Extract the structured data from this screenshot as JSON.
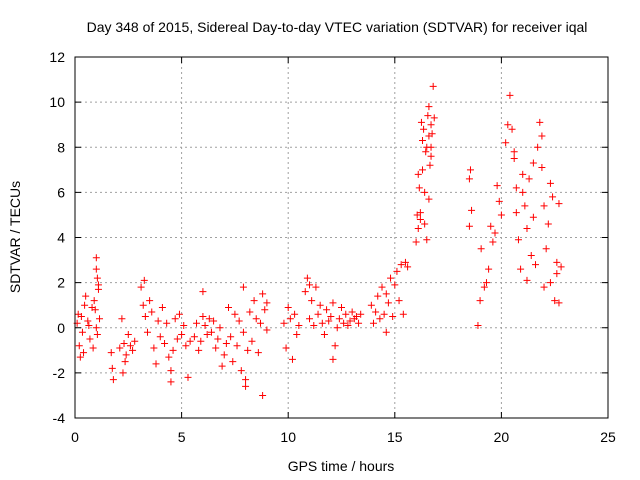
{
  "chart_data": {
    "type": "scatter",
    "title": "Day 348 of 2015, Sidereal Day-to-day VTEC variation (SDTVAR) for receiver iqal",
    "xlabel": "GPS time / hours",
    "ylabel": "SDTVAR / TECUs",
    "xlim": [
      0,
      25
    ],
    "ylim": [
      -4,
      12
    ],
    "xticks": [
      0,
      5,
      10,
      15,
      20,
      25
    ],
    "yticks": [
      -4,
      -2,
      0,
      2,
      4,
      6,
      8,
      10,
      12
    ],
    "grid": true,
    "marker": "+",
    "series": [
      {
        "name": "SDTVAR",
        "color": "#ff0000",
        "x": [
          0.1,
          0.2,
          0.3,
          0.4,
          0.5,
          0.6,
          0.7,
          0.8,
          0.9,
          1.0,
          1.1,
          1.15,
          1.05,
          0.95,
          0.85,
          0.65,
          0.45,
          0.35,
          0.25,
          0.15,
          1.0,
          1.05,
          1.1,
          1.0,
          1.7,
          1.8,
          1.75,
          2.1,
          2.2,
          2.3,
          2.4,
          2.5,
          2.6,
          2.7,
          2.8,
          2.25,
          2.35,
          3.1,
          3.2,
          3.3,
          3.4,
          3.5,
          3.6,
          3.7,
          3.8,
          3.9,
          4.0,
          4.1,
          4.2,
          4.3,
          4.4,
          4.5,
          4.6,
          4.7,
          4.8,
          4.9,
          5.0,
          5.1,
          5.2,
          5.3,
          5.4,
          3.25,
          4.5,
          5.6,
          5.7,
          5.8,
          5.9,
          6.0,
          6.1,
          6.2,
          6.3,
          6.4,
          6.5,
          6.6,
          6.7,
          6.8,
          6.9,
          7.0,
          7.1,
          7.2,
          7.3,
          7.4,
          7.5,
          7.6,
          7.7,
          7.8,
          7.9,
          8.0,
          8.1,
          8.2,
          8.3,
          8.4,
          8.5,
          8.6,
          8.7,
          8.8,
          8.9,
          9.0,
          7.9,
          8.0,
          8.8,
          9.0,
          6.0,
          9.8,
          9.9,
          10.0,
          10.1,
          10.2,
          10.3,
          10.4,
          10.5,
          10.8,
          10.9,
          11.0,
          11.1,
          11.2,
          11.3,
          11.4,
          11.5,
          11.6,
          11.7,
          11.8,
          11.9,
          12.0,
          12.1,
          12.2,
          12.3,
          12.4,
          12.5,
          12.6,
          12.7,
          12.8,
          12.9,
          13.0,
          13.1,
          13.2,
          13.3,
          13.4,
          11.0,
          12.1,
          13.9,
          14.0,
          14.1,
          14.2,
          14.3,
          14.4,
          14.5,
          14.6,
          14.7,
          14.8,
          14.9,
          15.0,
          15.1,
          15.2,
          15.3,
          15.4,
          15.5,
          15.6,
          14.6,
          16.0,
          16.05,
          16.1,
          16.15,
          16.2,
          16.25,
          16.3,
          16.35,
          16.4,
          16.45,
          16.5,
          16.55,
          16.6,
          16.65,
          16.7,
          16.75,
          16.8,
          16.85,
          16.4,
          16.5,
          16.6,
          16.3,
          16.2,
          16.1,
          16.7,
          16.7,
          16.6,
          18.5,
          18.55,
          18.6,
          18.5,
          18.9,
          19.0,
          19.05,
          19.2,
          19.3,
          19.4,
          19.5,
          19.6,
          19.7,
          19.8,
          19.9,
          20.0,
          20.2,
          20.3,
          20.4,
          20.5,
          20.6,
          20.7,
          20.8,
          20.9,
          21.0,
          21.1,
          21.2,
          21.3,
          21.4,
          21.5,
          21.6,
          21.7,
          21.8,
          21.9,
          22.0,
          22.1,
          22.2,
          22.3,
          22.4,
          22.5,
          22.6,
          22.7,
          22.8,
          20.6,
          20.7,
          21.0,
          21.2,
          21.5,
          21.9,
          22.0,
          22.3,
          22.6,
          22.7
        ],
        "y": [
          0.2,
          -0.8,
          0.5,
          -1.1,
          1.4,
          0.3,
          -0.5,
          0.9,
          1.2,
          2.6,
          1.9,
          0.4,
          -0.3,
          0.8,
          -0.9,
          0.1,
          1.0,
          -0.2,
          -1.3,
          0.6,
          3.1,
          2.2,
          1.7,
          0.0,
          -1.1,
          -2.3,
          -1.8,
          -0.9,
          0.4,
          -0.7,
          -1.2,
          -0.3,
          -0.8,
          -1.0,
          -0.6,
          -2.0,
          -1.5,
          1.8,
          1.0,
          0.5,
          -0.2,
          1.2,
          0.7,
          -0.9,
          -1.6,
          0.3,
          -0.4,
          0.9,
          -0.7,
          0.2,
          -1.3,
          -1.9,
          -1.0,
          0.4,
          -0.5,
          0.6,
          -0.3,
          0.1,
          -0.8,
          -2.2,
          -0.6,
          2.1,
          -2.4,
          -0.4,
          0.2,
          -1.0,
          -0.6,
          0.5,
          0.1,
          -0.3,
          0.4,
          -0.2,
          0.3,
          -0.9,
          -0.5,
          0.0,
          -1.7,
          -1.2,
          -0.7,
          0.9,
          -0.4,
          -1.5,
          0.6,
          -0.8,
          0.3,
          -1.9,
          -0.2,
          -2.3,
          -1.0,
          0.7,
          -0.6,
          1.2,
          0.4,
          -1.1,
          0.2,
          1.5,
          0.8,
          -0.1,
          1.8,
          -2.6,
          -3.0,
          1.1,
          1.6,
          0.2,
          -0.9,
          0.9,
          0.4,
          -1.4,
          0.6,
          -0.3,
          0.1,
          1.6,
          2.2,
          0.4,
          1.2,
          0.1,
          1.8,
          0.6,
          1.0,
          0.2,
          -0.3,
          0.8,
          0.3,
          0.5,
          1.1,
          -0.8,
          0.0,
          0.4,
          0.9,
          0.2,
          0.6,
          0.1,
          0.3,
          0.7,
          0.4,
          0.5,
          0.2,
          0.6,
          1.9,
          -1.4,
          1.0,
          0.2,
          0.7,
          1.4,
          0.4,
          1.8,
          0.6,
          -0.2,
          1.1,
          2.2,
          0.5,
          1.9,
          2.5,
          1.2,
          2.8,
          0.6,
          2.9,
          2.7,
          1.5,
          3.8,
          5.0,
          4.4,
          6.2,
          5.1,
          9.1,
          7.0,
          8.8,
          6.0,
          7.8,
          8.0,
          9.4,
          8.5,
          7.2,
          9.0,
          8.6,
          10.7,
          9.3,
          4.6,
          3.9,
          5.7,
          8.3,
          4.8,
          6.8,
          7.6,
          8.0,
          9.8,
          6.6,
          7.0,
          5.2,
          4.5,
          0.1,
          1.2,
          3.5,
          1.8,
          2.0,
          2.6,
          4.5,
          3.8,
          4.2,
          6.3,
          5.6,
          5.0,
          8.2,
          9.0,
          10.3,
          8.8,
          7.5,
          5.1,
          3.9,
          2.6,
          6.8,
          5.4,
          4.4,
          6.6,
          3.2,
          4.9,
          2.8,
          8.0,
          9.1,
          7.1,
          1.8,
          3.5,
          4.6,
          2.0,
          5.8,
          1.2,
          2.4,
          1.1,
          2.7,
          7.8,
          6.2,
          6.0,
          2.1,
          7.3,
          8.5,
          5.4,
          6.4,
          2.9,
          5.5
        ]
      }
    ]
  }
}
